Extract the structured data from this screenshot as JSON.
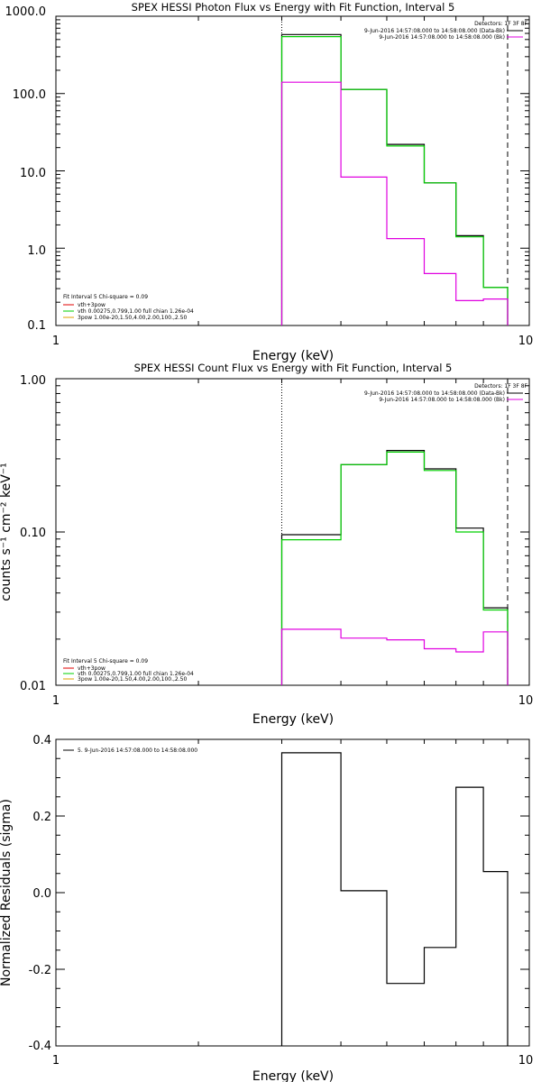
{
  "chart_data": [
    {
      "type": "line",
      "title": "SPEX HESSI Photon Flux vs Energy with Fit Function, Interval 5",
      "xlabel": "Energy (keV)",
      "ylabel": "",
      "xscale": "log",
      "yscale": "log",
      "xlim": [
        1,
        10
      ],
      "ylim": [
        0.1,
        1000
      ],
      "xticks": [
        "1",
        "10"
      ],
      "yticks": [
        "0.1",
        "1.0",
        "10.0",
        "100.0",
        "1000.0"
      ],
      "vlines": [
        {
          "x": 3.0,
          "style": "dotted"
        },
        {
          "x": 9.0,
          "style": "dashed"
        }
      ],
      "legend_right": {
        "title": "Detectors: 1F 3F 8F",
        "entries": [
          {
            "text": "9-Jun-2016 14:57:08.000 to 14:58:08.000 (Data-Bk)",
            "color": "#000000"
          },
          {
            "text": "9-Jun-2016 14:57:08.000 to 14:58:08.000 (Bk)",
            "color": "#e000e0"
          }
        ]
      },
      "legend_left": {
        "header": "Fit Interval 5   Chi-square = 0.09",
        "entries": [
          {
            "text": "vth+3pow",
            "color": "#e00000"
          },
          {
            "text": "vth 0.00275,0.799,1.00  full chian 1.26e-04",
            "color": "#00d000"
          },
          {
            "text": "3pow 1.00e-20,1.50,4.00,2.00,100.,2.50",
            "color": "#e0a000"
          }
        ]
      },
      "x_edges": [
        3.0,
        4.0,
        5.0,
        6.0,
        7.0,
        8.0,
        9.0
      ],
      "series": [
        {
          "color": "#000000",
          "values": [
            580,
            113,
            22,
            7.0,
            1.45,
            0.31
          ]
        },
        {
          "color": "#00d000",
          "values": [
            545,
            113,
            21,
            7.0,
            1.4,
            0.31
          ]
        },
        {
          "color": "#e000e0",
          "values": [
            140,
            8.3,
            1.33,
            0.47,
            0.21,
            0.22
          ]
        }
      ]
    },
    {
      "type": "line",
      "title": "SPEX HESSI Count Flux vs Energy with Fit Function, Interval 5",
      "xlabel": "Energy (keV)",
      "ylabel": "counts s⁻¹ cm⁻² keV⁻¹",
      "xscale": "log",
      "yscale": "log",
      "xlim": [
        1,
        10
      ],
      "ylim": [
        0.01,
        1.0
      ],
      "xticks": [
        "1",
        "10"
      ],
      "yticks": [
        "0.01",
        "0.10",
        "1.00"
      ],
      "vlines": [
        {
          "x": 3.0,
          "style": "dotted"
        },
        {
          "x": 9.0,
          "style": "dashed"
        }
      ],
      "legend_right": {
        "title": "Detectors: 1F 3F 8F",
        "entries": [
          {
            "text": "9-Jun-2016 14:57:08.000 to 14:58:08.000 (Data-Bk)",
            "color": "#000000"
          },
          {
            "text": "9-Jun-2016 14:57:08.000 to 14:58:08.000 (Bk)",
            "color": "#e000e0"
          }
        ]
      },
      "legend_left": {
        "header": "Fit Interval 5   Chi-square = 0.09",
        "entries": [
          {
            "text": "vth+3pow",
            "color": "#e00000"
          },
          {
            "text": "vth 0.00275,0.799,1.00  full chian 1.26e-04",
            "color": "#00d000"
          },
          {
            "text": "3pow 1.00e-20,1.50,4.00,2.00,100.,2.50",
            "color": "#e0a000"
          }
        ]
      },
      "x_edges": [
        3.0,
        4.0,
        5.0,
        6.0,
        7.0,
        8.0,
        9.0
      ],
      "series": [
        {
          "color": "#000000",
          "values": [
            0.096,
            0.275,
            0.34,
            0.258,
            0.106,
            0.032
          ]
        },
        {
          "color": "#00d000",
          "values": [
            0.089,
            0.275,
            0.332,
            0.252,
            0.1,
            0.031
          ]
        },
        {
          "color": "#e000e0",
          "values": [
            0.0232,
            0.0203,
            0.0198,
            0.0173,
            0.0165,
            0.0223
          ]
        }
      ]
    },
    {
      "type": "line",
      "title": "",
      "xlabel": "Energy (keV)",
      "ylabel": "Normalized Residuals (sigma)",
      "xscale": "log",
      "yscale": "linear",
      "xlim": [
        1,
        10
      ],
      "ylim": [
        -0.4,
        0.4
      ],
      "xticks": [
        "1",
        "10"
      ],
      "yticks": [
        "-0.4",
        "-0.2",
        "0.0",
        "0.2",
        "0.4"
      ],
      "legend_left": {
        "entries": [
          {
            "text": "5.  9-Jun-2016 14:57:08.000 to 14:58:08.000",
            "color": "#000000"
          }
        ]
      },
      "x_edges": [
        3.0,
        4.0,
        5.0,
        6.0,
        7.0,
        8.0,
        9.0
      ],
      "series": [
        {
          "color": "#000000",
          "values": [
            0.365,
            0.005,
            -0.237,
            -0.143,
            0.275,
            0.055
          ]
        }
      ]
    }
  ]
}
